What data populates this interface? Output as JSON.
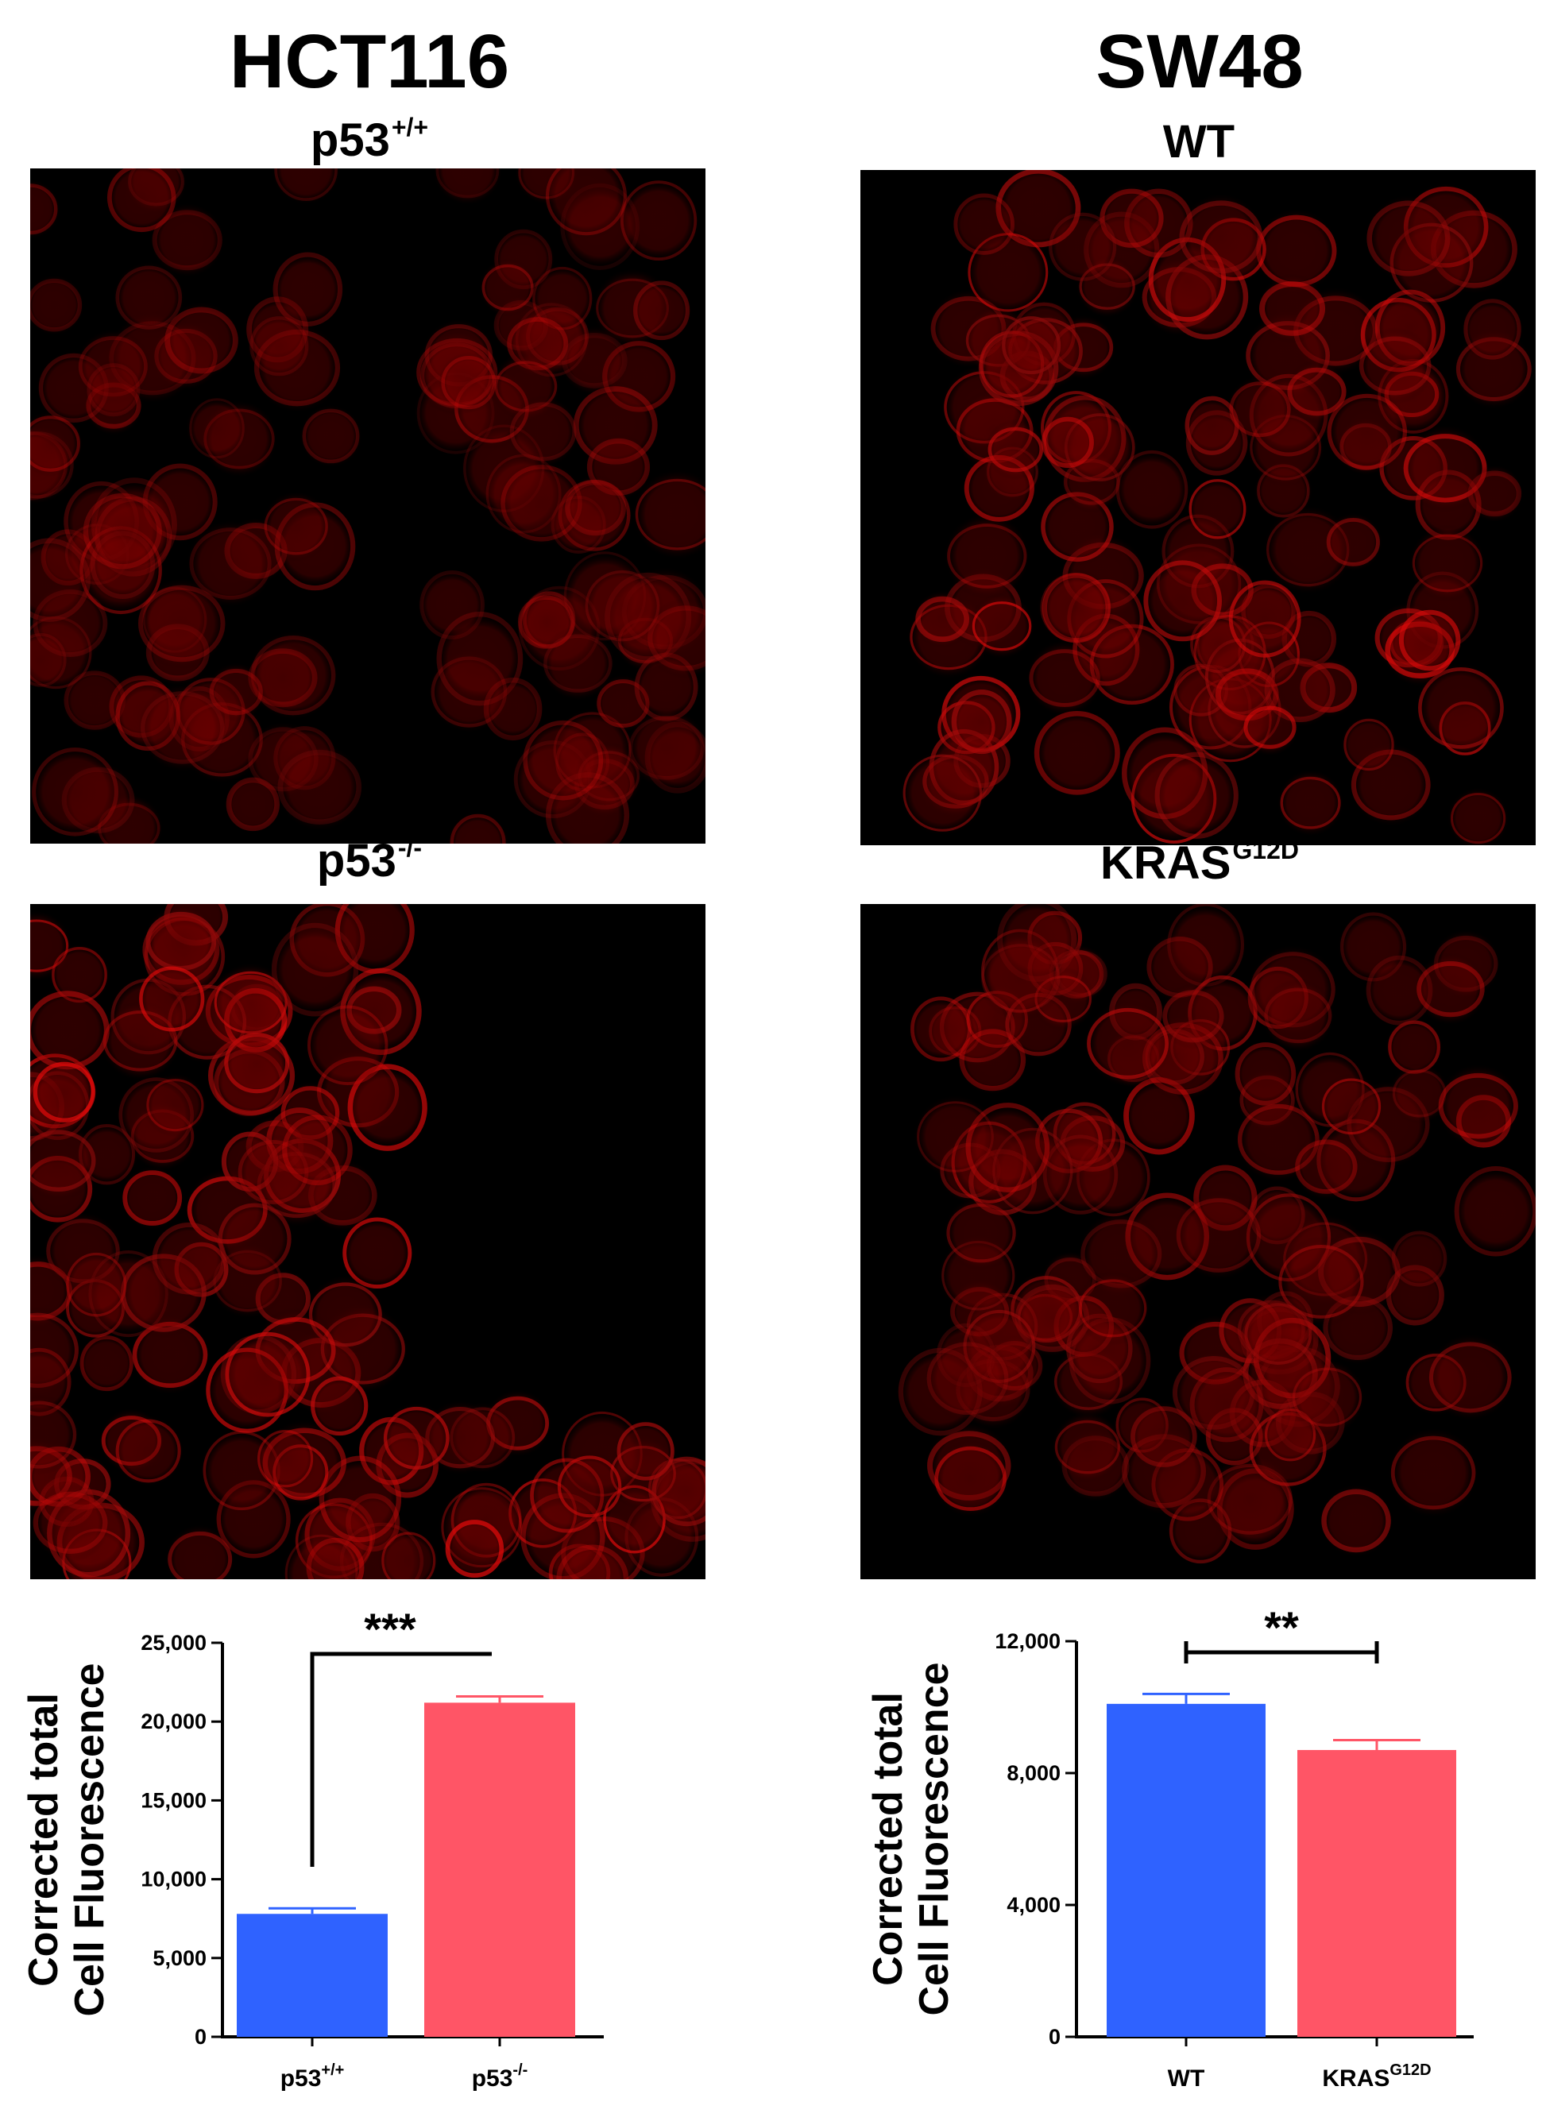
{
  "columns": [
    {
      "title": "HCT116",
      "panels": [
        {
          "label_main": "p53",
          "label_sup": "+/+",
          "intensity": 0.45
        },
        {
          "label_main": "p53",
          "label_sup": "-/-",
          "intensity": 0.85
        }
      ]
    },
    {
      "title": "SW48",
      "panels": [
        {
          "label_main": "WT",
          "label_sup": "",
          "intensity": 0.8
        },
        {
          "label_main": "KRAS",
          "label_sup": "G12D",
          "intensity": 0.7
        }
      ]
    }
  ],
  "chart_data": [
    {
      "type": "bar",
      "categories": [
        {
          "main": "p53",
          "sup": "+/+"
        },
        {
          "main": "p53",
          "sup": "-/-"
        }
      ],
      "values": [
        7800,
        21200
      ],
      "errors": [
        350,
        400
      ],
      "colors": [
        "#2f62ff",
        "#ff5566"
      ],
      "ylabel_line1": "Corrected total",
      "ylabel_line2": "Cell Fluorescence",
      "ylim": [
        0,
        25000
      ],
      "yticks": [
        0,
        5000,
        10000,
        15000,
        20000,
        25000
      ],
      "ytick_labels": [
        "0",
        "5,000",
        "10,000",
        "15,000",
        "20,000",
        "25,000"
      ],
      "significance": "***",
      "grid": false
    },
    {
      "type": "bar",
      "categories": [
        {
          "main": "WT",
          "sup": ""
        },
        {
          "main": "KRAS",
          "sup": "G12D"
        }
      ],
      "values": [
        10100,
        8700
      ],
      "errors": [
        300,
        300
      ],
      "colors": [
        "#2f62ff",
        "#ff5566"
      ],
      "ylabel_line1": "Corrected total",
      "ylabel_line2": "Cell Fluorescence",
      "ylim": [
        0,
        12000
      ],
      "yticks": [
        0,
        4000,
        8000,
        12000
      ],
      "ytick_labels": [
        "0",
        "4,000",
        "8,000",
        "12,000"
      ],
      "significance": "**",
      "grid": false
    }
  ]
}
